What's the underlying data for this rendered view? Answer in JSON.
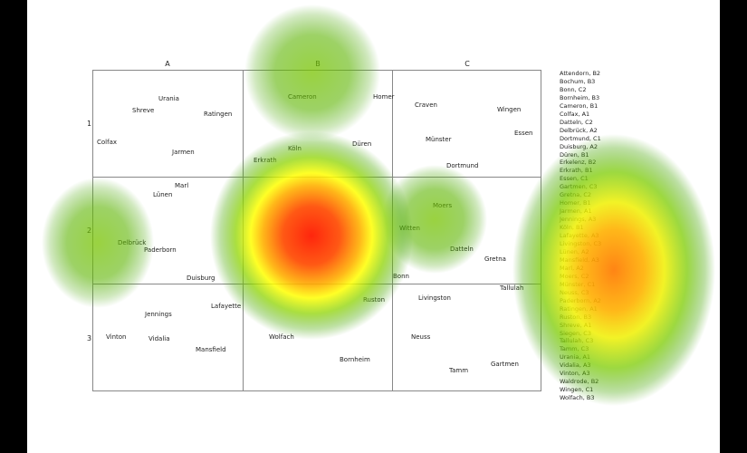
{
  "columns": [
    "A",
    "B",
    "C"
  ],
  "rows": [
    "1",
    "2",
    "3"
  ],
  "map_labels": {
    "urania": "Urania",
    "shreve": "Shreve",
    "ratingen": "Ratingen",
    "colfax": "Colfax",
    "jarmen": "Jarmen",
    "cameron": "Cameron",
    "homer": "Homer",
    "koln": "Köln",
    "duren": "Düren",
    "erkrath": "Erkrath",
    "craven": "Craven",
    "wingen": "Wingen",
    "essen": "Essen",
    "munster": "Münster",
    "dortmund": "Dortmund",
    "marl": "Marl",
    "lunen": "Lünen",
    "delbruck": "Delbrück",
    "paderborn": "Paderborn",
    "duisburg": "Duisburg",
    "moers": "Moers",
    "witten": "Witten",
    "datteln": "Datteln",
    "gretna": "Gretna",
    "bonn": "Bonn",
    "jennings": "Jennings",
    "lafayette": "Lafayette",
    "vinton": "Vinton",
    "vidalia": "Vidalia",
    "mansfield": "Mansfield",
    "ruston": "Ruston",
    "wolfach": "Wolfach",
    "bornheim": "Bornheim",
    "livingston": "Livingston",
    "tallulah": "Tallulah",
    "neuss": "Neuss",
    "tamm": "Tamm",
    "gartmen": "Gartmen"
  },
  "legend": [
    "Attendorn, B2",
    "Bochum, B3",
    "Bonn, C2",
    "Bornheim, B3",
    "Cameron, B1",
    "Colfax, A1",
    "Datteln, C2",
    "Delbrück, A2",
    "Dortmund, C1",
    "Duisburg, A2",
    "Düren, B1",
    "Erkelenz, B2",
    "Erkrath, B1",
    "Essen, C1",
    "Gartmen, C3",
    "Gretna, C2",
    "Homer, B1",
    "Jarmen, A1",
    "Jennings, A3",
    "Köln, B1",
    "Lafayette, A3",
    "Livingston, C3",
    "Lünen, A2",
    "Mansfield, A3",
    "Marl, A2",
    "Moers, C2",
    "Münster, C1",
    "Neuss, C3",
    "Paderborn, A2",
    "Ratingen, A1",
    "Ruston, B3",
    "Shreve, A1",
    "Siegen, C3",
    "Tallulah, C3",
    "Tamm, C3",
    "Urania, A1",
    "Vidalia, A3",
    "Vinton, A3",
    "Waldrode, B2",
    "Wingen, C1",
    "Wolfach, B3"
  ],
  "heatmap": [
    {
      "name": "hot-spot-center",
      "intensity": 1.0
    },
    {
      "name": "hot-spot-right",
      "intensity": 0.85
    },
    {
      "name": "warm-spot-top",
      "intensity": 0.45
    },
    {
      "name": "warm-spot-left",
      "intensity": 0.42
    },
    {
      "name": "warm-spot-moers",
      "intensity": 0.4
    }
  ]
}
